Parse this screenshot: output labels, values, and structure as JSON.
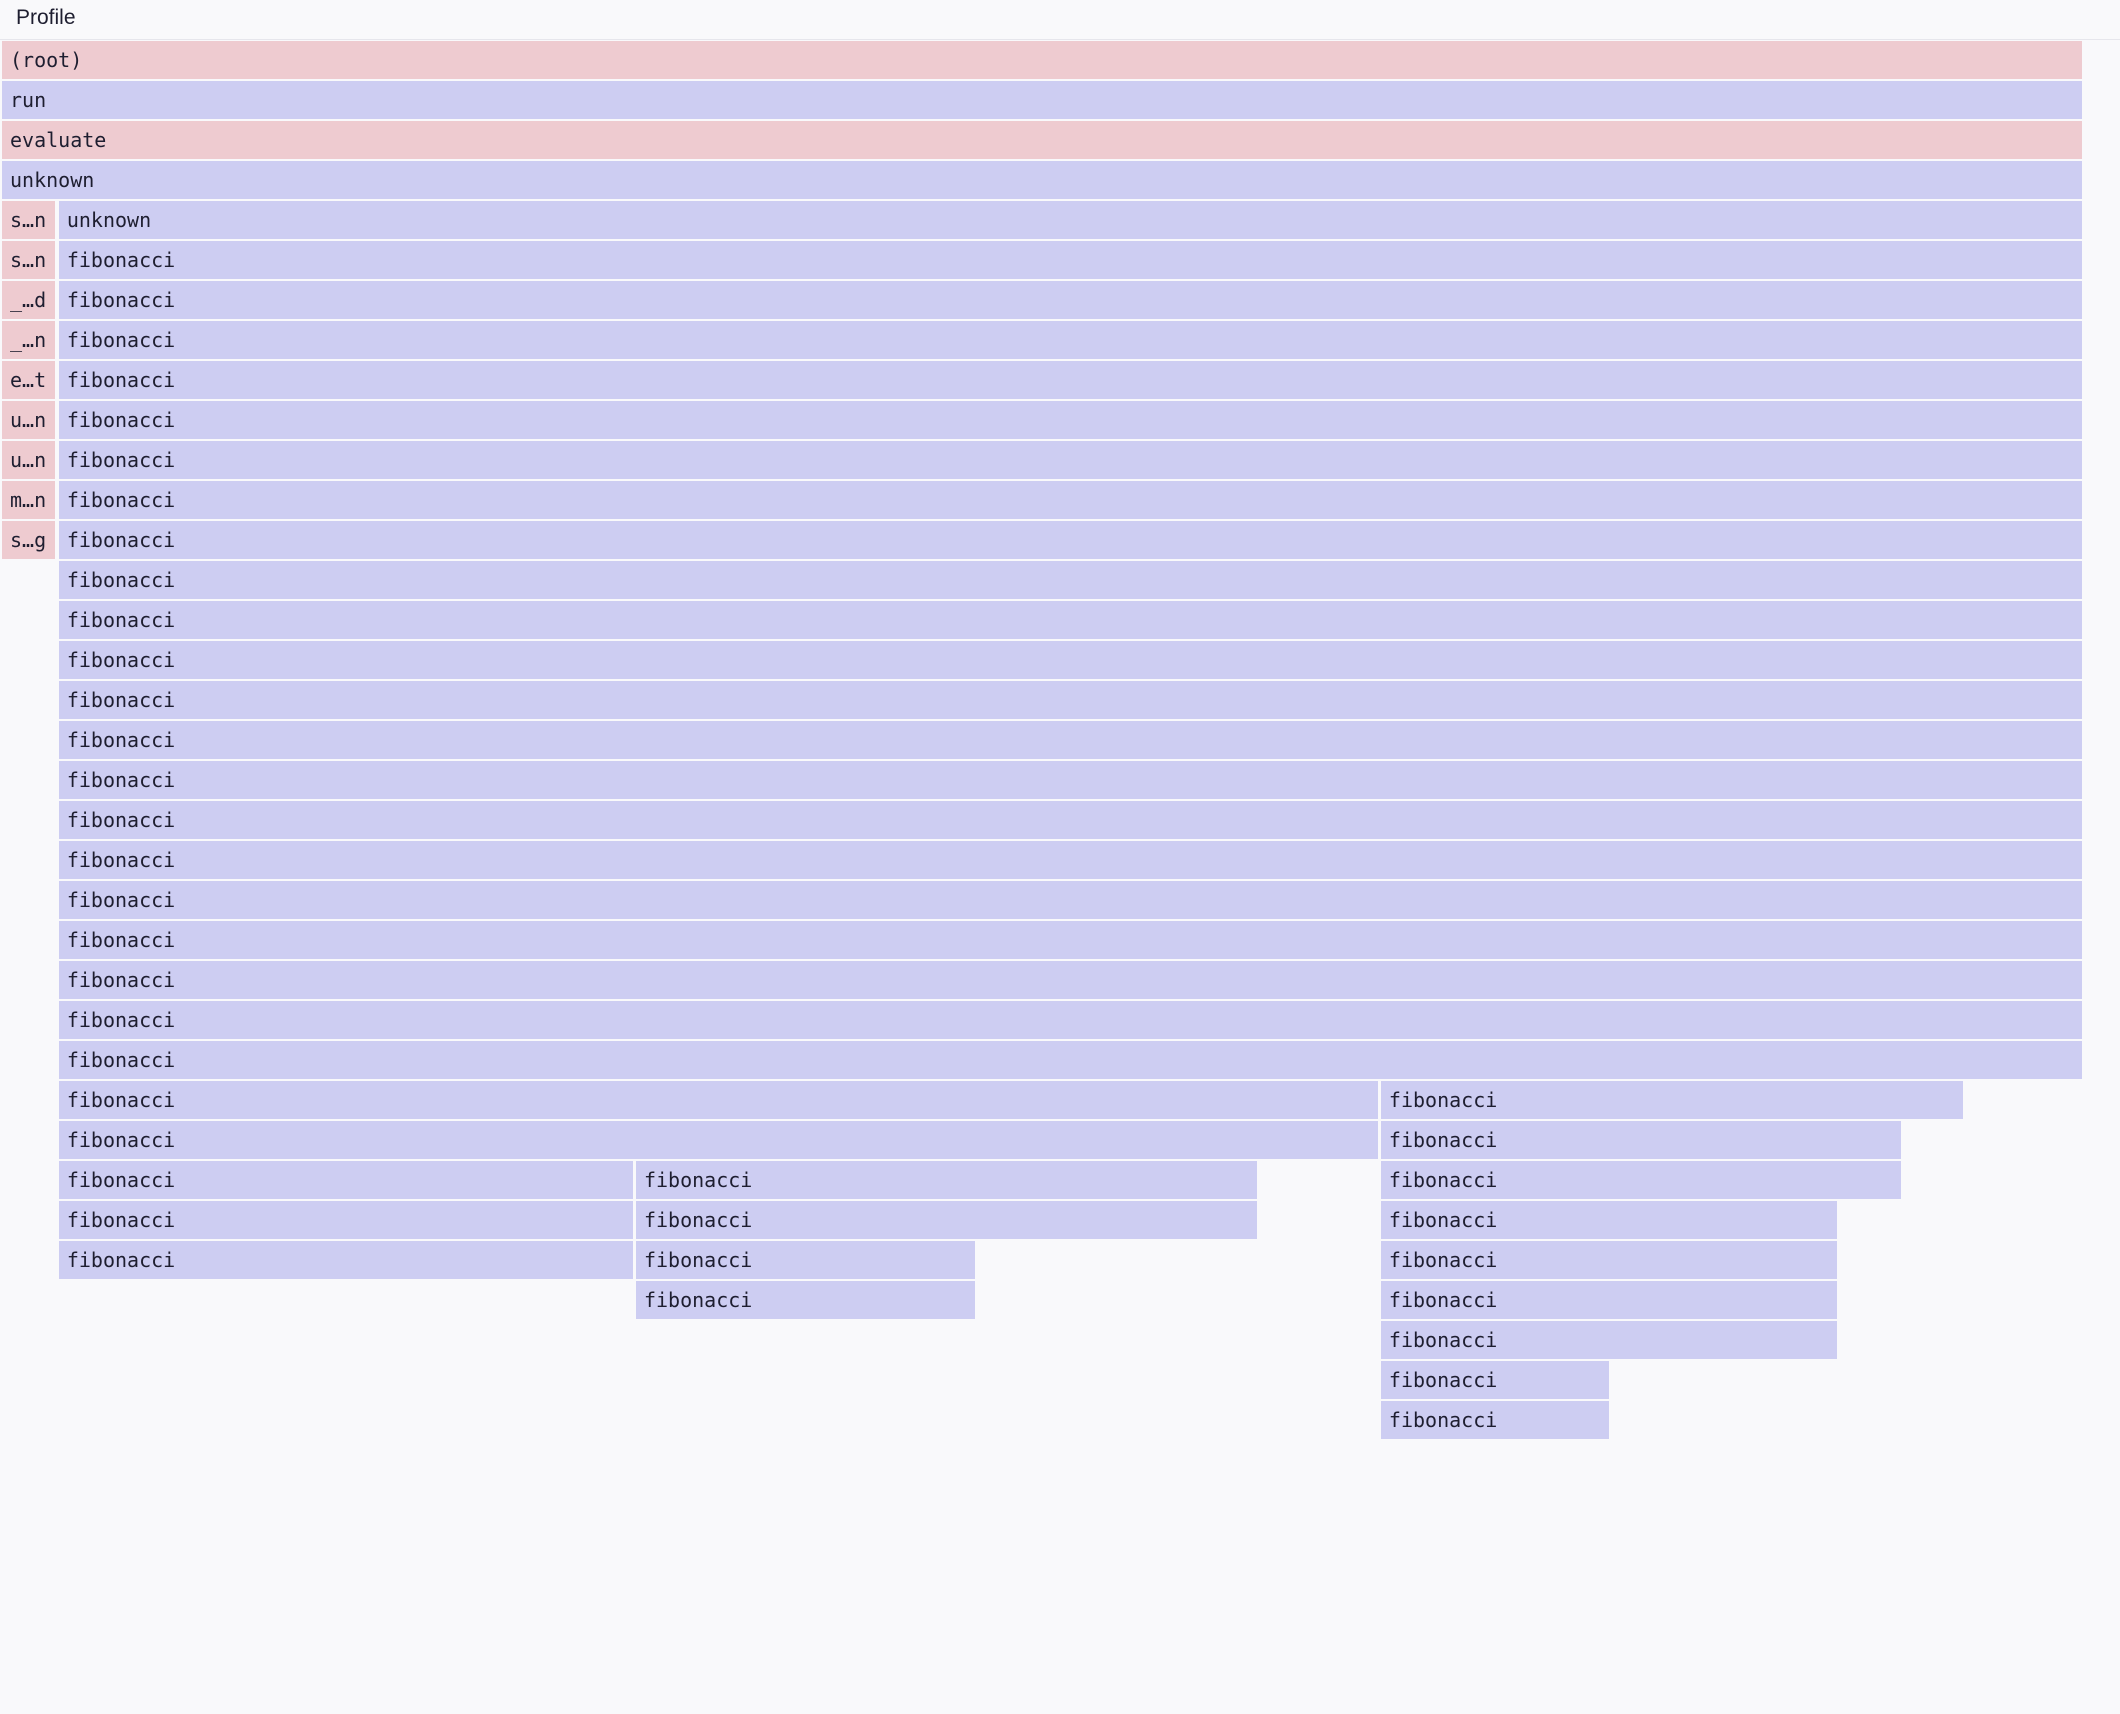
{
  "header": {
    "title": "Profile"
  },
  "colors": {
    "native": "#eecbd0",
    "js": "#cdcdf2",
    "background": "#f9f9fb"
  },
  "flamegraph": {
    "unit": "percent of root",
    "frames": [
      {
        "depth": 0,
        "label": "(root)",
        "kind": "native",
        "start": 0,
        "width": 100
      },
      {
        "depth": 1,
        "label": "run",
        "kind": "js",
        "start": 0,
        "width": 100
      },
      {
        "depth": 2,
        "label": "evaluate",
        "kind": "native",
        "start": 0,
        "width": 100
      },
      {
        "depth": 3,
        "label": "unknown",
        "kind": "js",
        "start": 0,
        "width": 100
      },
      {
        "depth": 4,
        "label": "s…n",
        "kind": "native",
        "start": 0,
        "width": 2.66
      },
      {
        "depth": 4,
        "label": "unknown",
        "kind": "js",
        "start": 2.73,
        "width": 97.27
      },
      {
        "depth": 5,
        "label": "s…n",
        "kind": "native",
        "start": 0,
        "width": 2.66
      },
      {
        "depth": 5,
        "label": "fibonacci",
        "kind": "js",
        "start": 2.73,
        "width": 97.27
      },
      {
        "depth": 6,
        "label": "_…d",
        "kind": "native",
        "start": 0,
        "width": 2.66
      },
      {
        "depth": 6,
        "label": "fibonacci",
        "kind": "js",
        "start": 2.73,
        "width": 97.27
      },
      {
        "depth": 7,
        "label": "_…n",
        "kind": "native",
        "start": 0,
        "width": 2.66
      },
      {
        "depth": 7,
        "label": "fibonacci",
        "kind": "js",
        "start": 2.73,
        "width": 97.27
      },
      {
        "depth": 8,
        "label": "e…t",
        "kind": "native",
        "start": 0,
        "width": 2.66
      },
      {
        "depth": 8,
        "label": "fibonacci",
        "kind": "js",
        "start": 2.73,
        "width": 97.27
      },
      {
        "depth": 9,
        "label": "u…n",
        "kind": "native",
        "start": 0,
        "width": 2.66
      },
      {
        "depth": 9,
        "label": "fibonacci",
        "kind": "js",
        "start": 2.73,
        "width": 97.27
      },
      {
        "depth": 10,
        "label": "u…n",
        "kind": "native",
        "start": 0,
        "width": 2.66
      },
      {
        "depth": 10,
        "label": "fibonacci",
        "kind": "js",
        "start": 2.73,
        "width": 97.27
      },
      {
        "depth": 11,
        "label": "m…n",
        "kind": "native",
        "start": 0,
        "width": 2.66
      },
      {
        "depth": 11,
        "label": "fibonacci",
        "kind": "js",
        "start": 2.73,
        "width": 97.27
      },
      {
        "depth": 12,
        "label": "s…g",
        "kind": "native",
        "start": 0,
        "width": 2.66
      },
      {
        "depth": 12,
        "label": "fibonacci",
        "kind": "js",
        "start": 2.73,
        "width": 97.27
      },
      {
        "depth": 13,
        "label": "fibonacci",
        "kind": "js",
        "start": 2.73,
        "width": 97.27
      },
      {
        "depth": 14,
        "label": "fibonacci",
        "kind": "js",
        "start": 2.73,
        "width": 97.27
      },
      {
        "depth": 15,
        "label": "fibonacci",
        "kind": "js",
        "start": 2.73,
        "width": 97.27
      },
      {
        "depth": 16,
        "label": "fibonacci",
        "kind": "js",
        "start": 2.73,
        "width": 97.27
      },
      {
        "depth": 17,
        "label": "fibonacci",
        "kind": "js",
        "start": 2.73,
        "width": 97.27
      },
      {
        "depth": 18,
        "label": "fibonacci",
        "kind": "js",
        "start": 2.73,
        "width": 97.27
      },
      {
        "depth": 19,
        "label": "fibonacci",
        "kind": "js",
        "start": 2.73,
        "width": 97.27
      },
      {
        "depth": 20,
        "label": "fibonacci",
        "kind": "js",
        "start": 2.73,
        "width": 97.27
      },
      {
        "depth": 21,
        "label": "fibonacci",
        "kind": "js",
        "start": 2.73,
        "width": 97.27
      },
      {
        "depth": 22,
        "label": "fibonacci",
        "kind": "js",
        "start": 2.73,
        "width": 97.27
      },
      {
        "depth": 23,
        "label": "fibonacci",
        "kind": "js",
        "start": 2.73,
        "width": 97.27
      },
      {
        "depth": 24,
        "label": "fibonacci",
        "kind": "js",
        "start": 2.73,
        "width": 97.27
      },
      {
        "depth": 25,
        "label": "fibonacci",
        "kind": "js",
        "start": 2.73,
        "width": 97.27
      },
      {
        "depth": 26,
        "label": "fibonacci",
        "kind": "js",
        "start": 2.73,
        "width": 63.44
      },
      {
        "depth": 26,
        "label": "fibonacci",
        "kind": "js",
        "start": 66.23,
        "width": 28.05
      },
      {
        "depth": 27,
        "label": "fibonacci",
        "kind": "js",
        "start": 2.73,
        "width": 63.44
      },
      {
        "depth": 27,
        "label": "fibonacci",
        "kind": "js",
        "start": 66.23,
        "width": 25.06
      },
      {
        "depth": 28,
        "label": "fibonacci",
        "kind": "js",
        "start": 2.73,
        "width": 27.66
      },
      {
        "depth": 28,
        "label": "fibonacci",
        "kind": "js",
        "start": 30.45,
        "width": 29.94
      },
      {
        "depth": 28,
        "label": "fibonacci",
        "kind": "js",
        "start": 66.23,
        "width": 25.06
      },
      {
        "depth": 29,
        "label": "fibonacci",
        "kind": "js",
        "start": 2.73,
        "width": 27.66
      },
      {
        "depth": 29,
        "label": "fibonacci",
        "kind": "js",
        "start": 30.45,
        "width": 29.94
      },
      {
        "depth": 29,
        "label": "fibonacci",
        "kind": "js",
        "start": 66.23,
        "width": 22.01
      },
      {
        "depth": 30,
        "label": "fibonacci",
        "kind": "js",
        "start": 2.73,
        "width": 27.66
      },
      {
        "depth": 30,
        "label": "fibonacci",
        "kind": "js",
        "start": 30.45,
        "width": 16.36
      },
      {
        "depth": 30,
        "label": "fibonacci",
        "kind": "js",
        "start": 66.23,
        "width": 22.01
      },
      {
        "depth": 31,
        "label": "fibonacci",
        "kind": "js",
        "start": 30.45,
        "width": 16.36
      },
      {
        "depth": 31,
        "label": "fibonacci",
        "kind": "js",
        "start": 66.23,
        "width": 22.01
      },
      {
        "depth": 32,
        "label": "fibonacci",
        "kind": "js",
        "start": 66.23,
        "width": 22.01
      },
      {
        "depth": 33,
        "label": "fibonacci",
        "kind": "js",
        "start": 66.23,
        "width": 11.04
      },
      {
        "depth": 34,
        "label": "fibonacci",
        "kind": "js",
        "start": 66.23,
        "width": 11.04
      }
    ]
  }
}
